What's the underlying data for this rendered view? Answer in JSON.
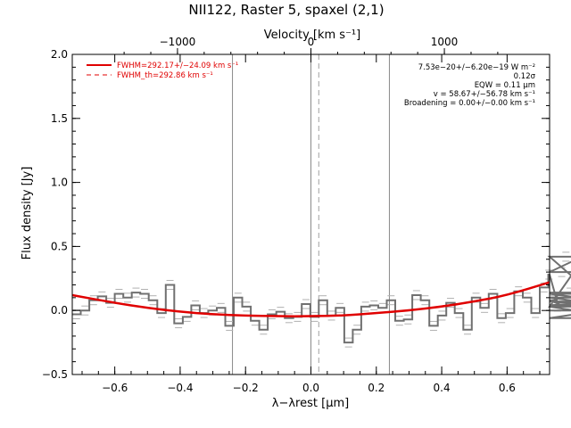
{
  "chart_data": {
    "type": "line",
    "title": "NII122, Raster 5, spaxel (2,1)",
    "xlabel": "λ−λrest [μm]",
    "ylabel": "Flux density [Jy]",
    "top_xlabel": "Velocity [km s⁻¹]",
    "xlim": [
      -0.73,
      0.73
    ],
    "ylim": [
      -0.5,
      2.0
    ],
    "x_ticks": [
      -0.6,
      -0.4,
      -0.2,
      0.0,
      0.2,
      0.4,
      0.6
    ],
    "x_tick_labels": [
      "−0.6",
      "−0.4",
      "−0.2",
      "0.0",
      "0.2",
      "0.4",
      "0.6"
    ],
    "y_ticks": [
      -0.5,
      0.0,
      0.5,
      1.0,
      1.5,
      2.0
    ],
    "y_tick_labels": [
      "−0.5",
      "0.0",
      "0.5",
      "1.0",
      "1.5",
      "2.0"
    ],
    "top_ticks_velocity": [
      -1000,
      0,
      1000
    ],
    "top_tick_labels": [
      "−1000",
      "0",
      "1000"
    ],
    "velocity_per_micron": 2450,
    "legend": [
      {
        "label": "FWHM=292.17+/−24.09 km s⁻¹",
        "style": "solid",
        "color": "#e00000"
      },
      {
        "label": "FWHM_th=292.86 km s⁻¹",
        "style": "dashed",
        "color": "#e00000"
      }
    ],
    "annotations": [
      "7.53e−20+/−6.20e−19 W m⁻²",
      "0.12σ",
      "EQW = 0.11 μm",
      "v = 58.67+/−56.78 km s⁻¹",
      "Broadening = 0.00+/−0.00 km s⁻¹"
    ],
    "vlines_solid": [
      -0.24,
      0.0,
      0.24
    ],
    "vline_dashed": 0.024,
    "spectrum": {
      "bin_width": 0.026,
      "x_start": -0.73,
      "values": [
        -0.03,
        0.0,
        0.08,
        0.11,
        0.06,
        0.13,
        0.1,
        0.14,
        0.13,
        0.08,
        -0.02,
        0.2,
        -0.1,
        -0.05,
        0.04,
        -0.02,
        0.0,
        0.02,
        -0.12,
        0.1,
        0.03,
        -0.08,
        -0.15,
        -0.03,
        -0.01,
        -0.06,
        -0.05,
        0.05,
        -0.05,
        0.08,
        -0.04,
        0.02,
        -0.25,
        -0.15,
        0.03,
        0.04,
        0.02,
        0.08,
        -0.08,
        -0.07,
        0.12,
        0.08,
        -0.12,
        -0.04,
        0.06,
        -0.02,
        -0.15,
        0.1,
        0.02,
        0.13,
        -0.06,
        -0.02,
        0.15,
        0.1,
        -0.02,
        0.18,
        0.28,
        0.08,
        0.03,
        0.3,
        0.42,
        0.14,
        0.13,
        0.07,
        0.03,
        -0.06,
        0.04,
        0.1,
        0.0
      ]
    },
    "fit_curve": {
      "x": [
        -0.73,
        -0.6,
        -0.5,
        -0.4,
        -0.3,
        -0.2,
        -0.1,
        0.0,
        0.1,
        0.2,
        0.3,
        0.4,
        0.5,
        0.6,
        0.73
      ],
      "y": [
        0.12,
        0.06,
        0.02,
        -0.01,
        -0.03,
        -0.04,
        -0.045,
        -0.045,
        -0.04,
        -0.02,
        0.0,
        0.03,
        0.07,
        0.12,
        0.22
      ]
    },
    "colors": {
      "spectrum": "#707070",
      "error": "#b0b0b0",
      "fit": "#e00000",
      "vline": "#8a8a8a"
    }
  }
}
